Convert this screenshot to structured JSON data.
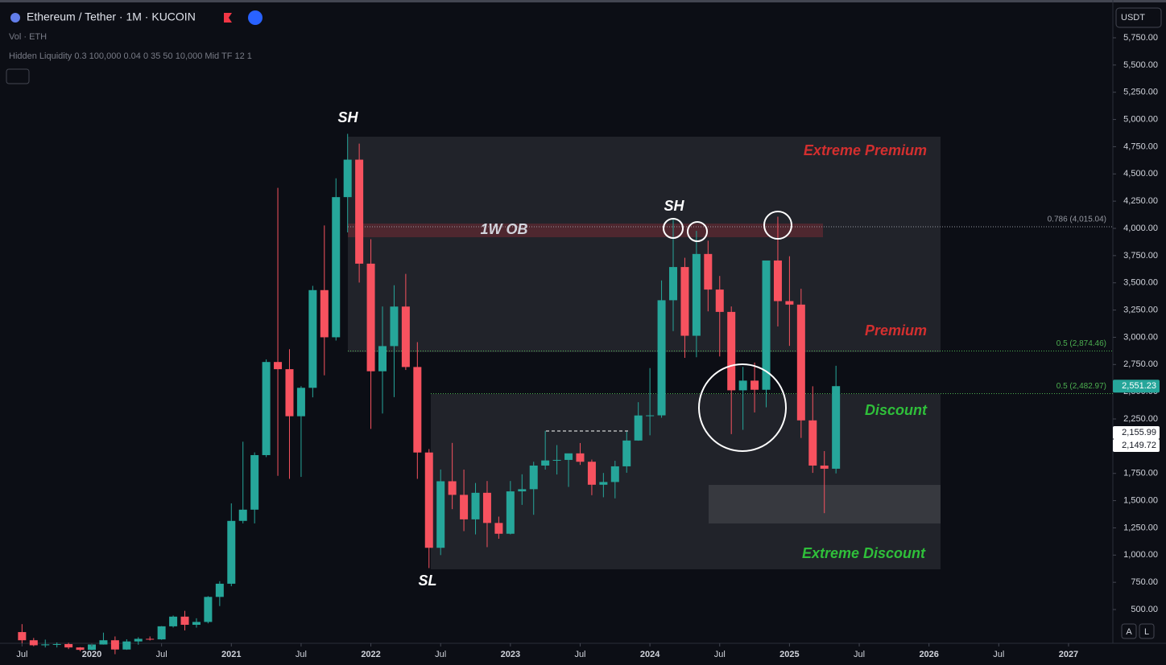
{
  "chart_data": {
    "type": "candlestick",
    "title": "Ethereum / Tether · 1M · KUCOIN",
    "indicators": [
      "Vol · ETH",
      "Hidden Liquidity 0.3 100,000 0.04 0 35 50 10,000 Mid TF 12 1"
    ],
    "currency": "USDT",
    "controls": [
      "A",
      "L"
    ],
    "annotations": [
      "SH",
      "SH",
      "SL",
      "Extreme Premium",
      "Premium",
      "Discount",
      "Extreme Discount",
      "1W OB"
    ],
    "up_color": "#26a69a",
    "down_color": "#f7525f",
    "x": [
      "2019-07",
      "2019-08",
      "2019-09",
      "2019-10",
      "2019-11",
      "2019-12",
      "2020-01",
      "2020-02",
      "2020-03",
      "2020-04",
      "2020-05",
      "2020-06",
      "2020-07",
      "2020-08",
      "2020-09",
      "2020-10",
      "2020-11",
      "2020-12",
      "2021-01",
      "2021-02",
      "2021-03",
      "2021-04",
      "2021-05",
      "2021-06",
      "2021-07",
      "2021-08",
      "2021-09",
      "2021-10",
      "2021-11",
      "2021-12",
      "2022-01",
      "2022-02",
      "2022-03",
      "2022-04",
      "2022-05",
      "2022-06",
      "2022-07",
      "2022-08",
      "2022-09",
      "2022-10",
      "2022-11",
      "2022-12",
      "2023-01",
      "2023-02",
      "2023-03",
      "2023-04",
      "2023-05",
      "2023-06",
      "2023-07",
      "2023-08",
      "2023-09",
      "2023-10",
      "2023-11",
      "2023-12",
      "2024-01",
      "2024-02",
      "2024-03",
      "2024-04",
      "2024-05",
      "2024-06",
      "2024-07",
      "2024-08",
      "2024-09",
      "2024-10",
      "2024-11",
      "2024-12",
      "2025-01",
      "2025-02",
      "2025-03",
      "2025-04",
      "2025-05"
    ],
    "open": [
      293,
      218,
      172,
      180,
      183,
      152,
      130,
      179,
      218,
      133,
      207,
      231,
      226,
      346,
      435,
      360,
      386,
      616,
      737,
      1314,
      1417,
      1918,
      2773,
      2707,
      2275,
      2536,
      3433,
      3000,
      4287,
      4631,
      3676,
      2688,
      2919,
      3282,
      2727,
      1942,
      1067,
      1678,
      1553,
      1328,
      1572,
      1295,
      1196,
      1585,
      1605,
      1822,
      1869,
      1874,
      1934,
      1857,
      1646,
      1671,
      1815,
      2052,
      2282,
      2283,
      3340,
      3645,
      3014,
      3765,
      3438,
      3233,
      2513,
      2602,
      2518,
      3705,
      3332,
      3300,
      2237,
      1822,
      1793
    ],
    "high": [
      366,
      239,
      224,
      198,
      195,
      155,
      185,
      288,
      253,
      227,
      246,
      253,
      348,
      445,
      488,
      420,
      623,
      760,
      1475,
      2041,
      1943,
      2797,
      4372,
      2891,
      2551,
      3472,
      4027,
      4460,
      4868,
      4778,
      3900,
      3283,
      3478,
      3582,
      2955,
      1973,
      1786,
      2030,
      1785,
      1662,
      1680,
      1353,
      1680,
      1742,
      1857,
      2141,
      2010,
      1930,
      2029,
      1877,
      1754,
      1866,
      2134,
      2404,
      2717,
      3522,
      4093,
      3730,
      3977,
      3887,
      3563,
      3283,
      2728,
      2768,
      3682,
      4107,
      3744,
      3445,
      2550,
      1955,
      2738
    ],
    "low": [
      190,
      163,
      152,
      152,
      137,
      117,
      127,
      178,
      90,
      130,
      177,
      216,
      222,
      335,
      308,
      334,
      373,
      532,
      714,
      1291,
      1291,
      1900,
      1728,
      1700,
      1718,
      2449,
      2651,
      2970,
      3963,
      3503,
      2159,
      2300,
      2450,
      2700,
      1700,
      880,
      1000,
      1422,
      1220,
      1190,
      1073,
      1150,
      1190,
      1461,
      1370,
      1785,
      1740,
      1626,
      1828,
      1550,
      1531,
      1521,
      1756,
      2050,
      2100,
      2261,
      3057,
      2811,
      2817,
      3238,
      2824,
      2111,
      2150,
      2310,
      2357,
      3099,
      2921,
      2076,
      1755,
      1385,
      1750
    ],
    "close": [
      218,
      172,
      180,
      183,
      152,
      130,
      179,
      218,
      133,
      207,
      231,
      226,
      346,
      435,
      360,
      386,
      616,
      737,
      1314,
      1417,
      1918,
      2773,
      2707,
      2275,
      2536,
      3433,
      3000,
      4287,
      4631,
      3676,
      2688,
      2919,
      3282,
      2727,
      1942,
      1067,
      1678,
      1553,
      1328,
      1572,
      1295,
      1196,
      1585,
      1605,
      1822,
      1869,
      1874,
      1934,
      1857,
      1646,
      1671,
      1815,
      2052,
      2282,
      2283,
      3340,
      3645,
      3014,
      3765,
      3438,
      3233,
      2513,
      2602,
      2518,
      3705,
      3332,
      3300,
      2237,
      1822,
      1793,
      2551.23
    ],
    "ylim": [
      227,
      6097
    ],
    "yticks": [
      {
        "value": 500,
        "label": "500.00"
      },
      {
        "value": 750,
        "label": "750.00"
      },
      {
        "value": 1000,
        "label": "1,000.00"
      },
      {
        "value": 1250,
        "label": "1,250.00"
      },
      {
        "value": 1500,
        "label": "1,500.00"
      },
      {
        "value": 1750,
        "label": "1,750.00"
      },
      {
        "value": 2000,
        "label": "2,000.00"
      },
      {
        "value": 2250,
        "label": "2,250.00"
      },
      {
        "value": 2500,
        "label": "2,500.00"
      },
      {
        "value": 2750,
        "label": "2,750.00"
      },
      {
        "value": 3000,
        "label": "3,000.00"
      },
      {
        "value": 3250,
        "label": "3,250.00"
      },
      {
        "value": 3500,
        "label": "3,500.00"
      },
      {
        "value": 3750,
        "label": "3,750.00"
      },
      {
        "value": 4000,
        "label": "4,000.00"
      },
      {
        "value": 4250,
        "label": "4,250.00"
      },
      {
        "value": 4500,
        "label": "4,500.00"
      },
      {
        "value": 4750,
        "label": "4,750.00"
      },
      {
        "value": 5000,
        "label": "5,000.00"
      },
      {
        "value": 5250,
        "label": "5,250.00"
      },
      {
        "value": 5500,
        "label": "5,500.00"
      },
      {
        "value": 5750,
        "label": "5,750.00"
      }
    ],
    "xticks": [
      {
        "value": "2019-07",
        "label": "Jul"
      },
      {
        "value": "2020-01",
        "label": "2020"
      },
      {
        "value": "2020-07",
        "label": "Jul"
      },
      {
        "value": "2021-01",
        "label": "2021"
      },
      {
        "value": "2021-07",
        "label": "Jul"
      },
      {
        "value": "2022-01",
        "label": "2022"
      },
      {
        "value": "2022-07",
        "label": "Jul"
      },
      {
        "value": "2023-01",
        "label": "2023"
      },
      {
        "value": "2023-07",
        "label": "Jul"
      },
      {
        "value": "2024-01",
        "label": "2024"
      },
      {
        "value": "2024-07",
        "label": "Jul"
      },
      {
        "value": "2025-01",
        "label": "2025"
      },
      {
        "value": "2025-07",
        "label": "Jul"
      },
      {
        "value": "2026-01",
        "label": "2026"
      },
      {
        "value": "2026-07",
        "label": "Jul"
      },
      {
        "value": "2027-01",
        "label": "2027"
      }
    ],
    "levels": [
      {
        "value": 4015.04,
        "label": "0.786 (4,015.04)",
        "color": "#9598a1"
      },
      {
        "value": 2874.46,
        "label": "0.5 (2,874.46)",
        "color": "#4caf50"
      },
      {
        "value": 2482.97,
        "label": "0.5 (2,482.97)",
        "color": "#4caf50"
      }
    ],
    "price_labels": [
      {
        "value": 2551.23,
        "label": "2,551.23"
      },
      {
        "value": 2155.99,
        "label": "2,155.99"
      },
      {
        "value": 2149.72,
        "label": "2,149.72"
      }
    ]
  }
}
